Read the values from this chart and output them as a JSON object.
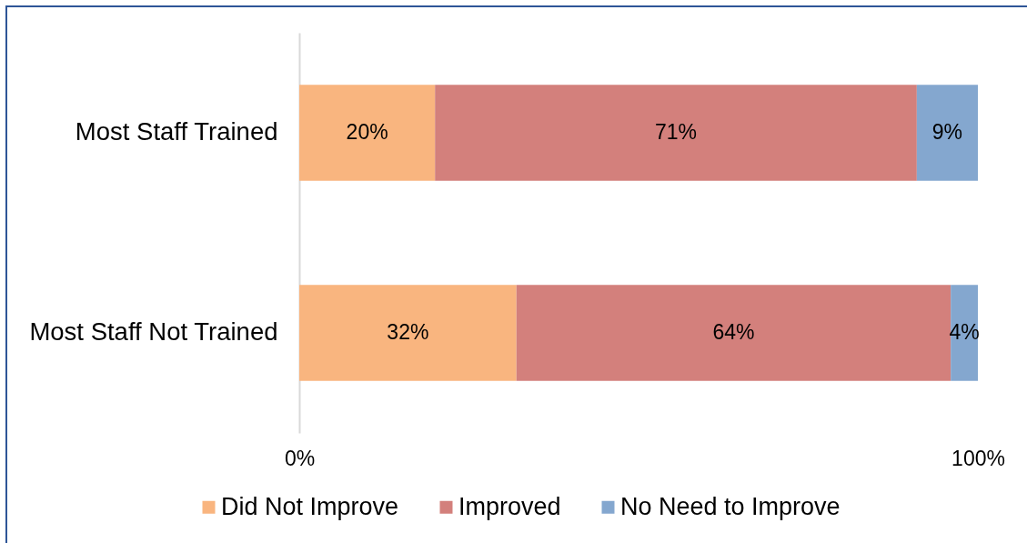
{
  "chart_data": {
    "type": "bar",
    "orientation": "horizontal",
    "stacked": true,
    "categories": [
      "Most Staff Trained",
      "Most Staff Not Trained"
    ],
    "series": [
      {
        "name": "Did Not Improve",
        "color": "#f9b57f",
        "values": [
          20,
          32
        ],
        "value_labels": [
          "20%",
          "32%"
        ]
      },
      {
        "name": "Improved",
        "color": "#d3807c",
        "values": [
          71,
          64
        ],
        "value_labels": [
          "71%",
          "64%"
        ]
      },
      {
        "name": "No Need to Improve",
        "color": "#84a7cf",
        "values": [
          9,
          4
        ],
        "value_labels": [
          "9%",
          "4%"
        ]
      }
    ],
    "xlim": [
      0,
      100
    ],
    "xticks": [
      {
        "value": 0,
        "label": "0%"
      },
      {
        "value": 100,
        "label": "100%"
      }
    ],
    "grid": false,
    "legend": "bottom"
  }
}
